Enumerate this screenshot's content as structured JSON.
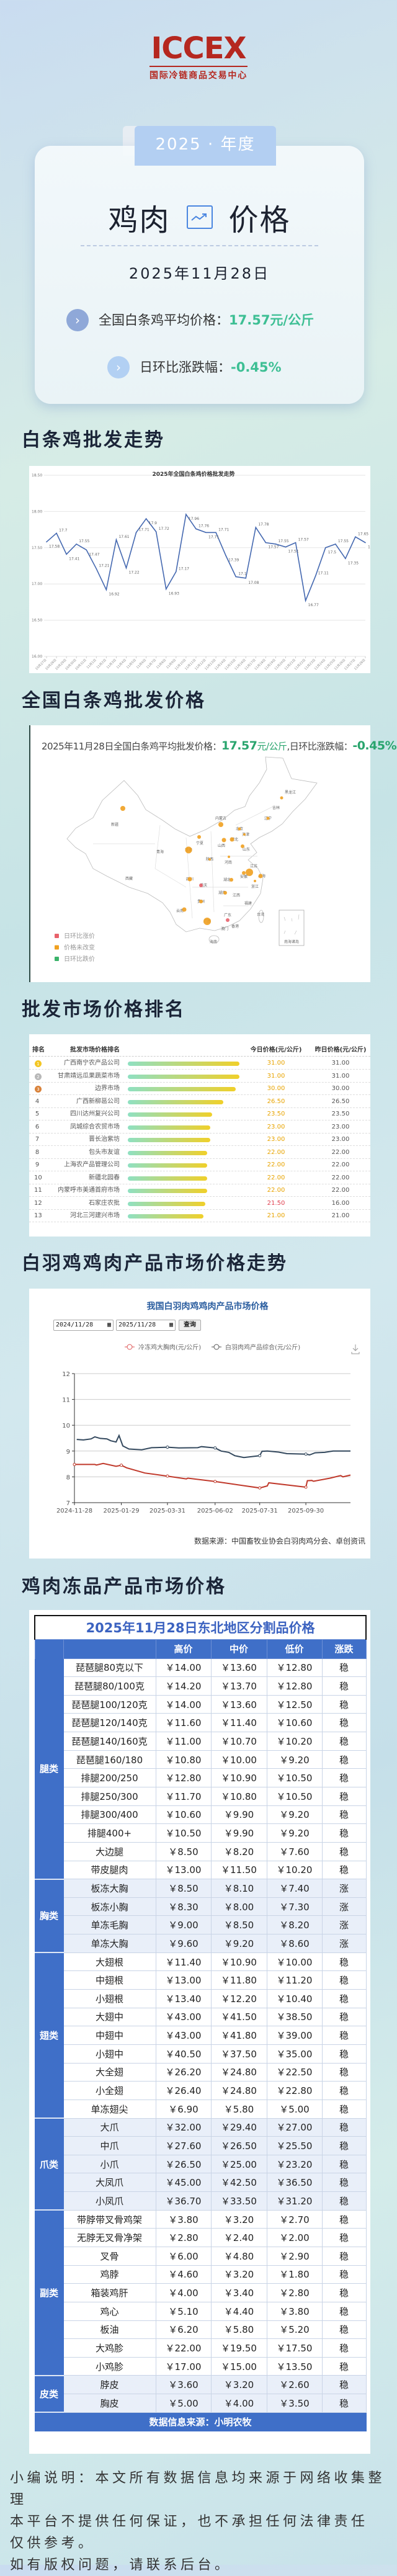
{
  "logo": {
    "brand": "ICCEX",
    "subtitle": "国际冷链商品交易中心"
  },
  "header": {
    "year_tab": "2025 · 年度",
    "title_left": "鸡肉",
    "title_right": "价格",
    "title_icon": "trend-chart-icon",
    "date": "2025年11月28日",
    "stats": [
      {
        "label": "全国白条鸡平均价格：",
        "value": "17.57元/公斤"
      },
      {
        "label": "日环比涨跌幅：",
        "value": "-0.45%"
      }
    ]
  },
  "colors": {
    "accent_green": "#3dbf94",
    "line_blue": "#4468b0",
    "table_blue": "#3f6fc8",
    "brand_red": "#b5271f",
    "rise_red": "#e8626b",
    "flat_orange": "#f0a020",
    "fall_green": "#3bb36a"
  },
  "sections": {
    "trend": "白条鸡批发走势",
    "national": "全国白条鸡批发价格",
    "ranking": "批发市场价格排名",
    "broiler": "白羽鸡鸡肉产品市场价格走势",
    "frozen": "鸡肉冻品产品市场价格"
  },
  "chart_data": [
    {
      "type": "line",
      "title": "2025年全国白条鸡价格批发走势",
      "ylim": [
        16.0,
        18.5
      ],
      "yticks": [
        "16.00",
        "16.50",
        "17.00",
        "17.50",
        "18.00",
        "18.50"
      ],
      "grid": true,
      "categories": [
        "10月27日",
        "10月28日",
        "10月29日",
        "10月30日",
        "10月31日",
        "11月1日",
        "11月2日",
        "11月3日",
        "11月4日",
        "11月5日",
        "11月6日",
        "11月7日",
        "11月8日",
        "11月9日",
        "11月10日",
        "11月11日",
        "11月12日",
        "11月13日",
        "11月14日",
        "11月15日",
        "11月16日",
        "11月17日",
        "11月18日",
        "11月19日",
        "11月20日",
        "11月21日",
        "11月22日",
        "11月23日",
        "11月24日",
        "11月25日",
        "11月26日",
        "11月27日",
        "11月28日"
      ],
      "values": [
        17.58,
        17.7,
        17.41,
        17.55,
        17.47,
        17.21,
        16.92,
        17.61,
        17.22,
        17.71,
        17.9,
        17.72,
        16.93,
        17.17,
        17.96,
        17.76,
        17.71,
        17.71,
        17.39,
        17.1,
        17.08,
        17.78,
        17.57,
        17.55,
        17.51,
        17.57,
        16.77,
        17.11,
        17.5,
        17.55,
        17.35,
        17.65,
        17.57
      ]
    },
    {
      "type": "line",
      "title": "我国白羽肉鸡鸡肉产品市场价格",
      "ylim": [
        7,
        12
      ],
      "yticks": [
        "7",
        "8",
        "9",
        "10",
        "11",
        "12"
      ],
      "grid": true,
      "xlim": [
        "2024-11-28",
        "2025-11-28"
      ],
      "xticks": [
        "2024-11-28",
        "2025-01-29",
        "2025-03-31",
        "2025-06-02",
        "2025-07-31",
        "2025-09-30"
      ],
      "legend": "top",
      "series": [
        {
          "name": "冷冻鸡大胸肉(元/公斤)",
          "color": "#c0392b",
          "points": [
            [
              "2024-11-28",
              8.48
            ],
            [
              "2024-12-25",
              8.48
            ],
            [
              "2024-12-27",
              8.46
            ],
            [
              "2025-01-05",
              8.52
            ],
            [
              "2025-01-22",
              8.41
            ],
            [
              "2025-01-29",
              8.45
            ],
            [
              "2025-02-05",
              8.35
            ],
            [
              "2025-03-01",
              8.15
            ],
            [
              "2025-03-31",
              8.03
            ],
            [
              "2025-04-25",
              7.92
            ],
            [
              "2025-04-27",
              7.95
            ],
            [
              "2025-06-02",
              7.82
            ],
            [
              "2025-07-31",
              7.57
            ],
            [
              "2025-08-10",
              7.65
            ],
            [
              "2025-08-12",
              7.77
            ],
            [
              "2025-09-30",
              7.6
            ],
            [
              "2025-10-02",
              7.85
            ],
            [
              "2025-10-08",
              7.86
            ],
            [
              "2025-10-10",
              7.83
            ],
            [
              "2025-11-01",
              7.95
            ],
            [
              "2025-11-15",
              8.05
            ],
            [
              "2025-11-18",
              8.0
            ],
            [
              "2025-11-28",
              8.07
            ]
          ]
        },
        {
          "name": "白羽肉鸡产品综合(元/公斤)",
          "color": "#34495e",
          "points": [
            [
              "2024-12-01",
              9.45
            ],
            [
              "2024-12-10",
              9.43
            ],
            [
              "2024-12-20",
              9.47
            ],
            [
              "2024-12-25",
              9.55
            ],
            [
              "2025-01-01",
              9.49
            ],
            [
              "2025-01-10",
              9.47
            ],
            [
              "2025-01-15",
              9.4
            ],
            [
              "2025-01-22",
              9.35
            ],
            [
              "2025-01-26",
              9.6
            ],
            [
              "2025-01-31",
              9.2
            ],
            [
              "2025-02-08",
              9.08
            ],
            [
              "2025-02-25",
              9.05
            ],
            [
              "2025-03-10",
              9.13
            ],
            [
              "2025-03-31",
              9.15
            ],
            [
              "2025-04-15",
              9.12
            ],
            [
              "2025-05-10",
              9.13
            ],
            [
              "2025-05-15",
              9.17
            ],
            [
              "2025-06-02",
              9.12
            ],
            [
              "2025-06-10",
              9.0
            ],
            [
              "2025-06-20",
              8.95
            ],
            [
              "2025-06-28",
              8.82
            ],
            [
              "2025-07-10",
              8.75
            ],
            [
              "2025-07-25",
              8.8
            ],
            [
              "2025-07-31",
              8.82
            ],
            [
              "2025-08-03",
              8.99
            ],
            [
              "2025-08-10",
              9.0
            ],
            [
              "2025-08-25",
              8.96
            ],
            [
              "2025-09-05",
              8.9
            ],
            [
              "2025-09-30",
              8.88
            ],
            [
              "2025-10-05",
              8.85
            ],
            [
              "2025-10-12",
              8.93
            ],
            [
              "2025-10-25",
              8.95
            ],
            [
              "2025-11-05",
              9.0
            ],
            [
              "2025-11-28",
              9.0
            ]
          ]
        }
      ]
    }
  ],
  "national": {
    "headline_prefix": "2025年11月28日全国白条鸡平均批发价格：",
    "price": "17.57",
    "unit": "元/公斤",
    "change_label": ",日环比涨跌幅：",
    "change": "-0.45%",
    "legend": [
      {
        "label": "日环比涨价",
        "status": "up"
      },
      {
        "label": "价格未改变",
        "status": "flat"
      },
      {
        "label": "日环比跌价",
        "status": "down"
      }
    ],
    "provinces": [
      {
        "name": "新疆",
        "status": "flat"
      },
      {
        "name": "黑龙江",
        "status": "flat"
      },
      {
        "name": "吉林",
        "status": ""
      },
      {
        "name": "辽宁",
        "status": "flat"
      },
      {
        "name": "内蒙古",
        "status": "flat"
      },
      {
        "name": "北京",
        "status": "flat"
      },
      {
        "name": "天津",
        "status": "flat"
      },
      {
        "name": "河北",
        "status": "flat"
      },
      {
        "name": "山西",
        "status": "flat"
      },
      {
        "name": "宁夏",
        "status": "flat"
      },
      {
        "name": "山东",
        "status": "flat"
      },
      {
        "name": "甘肃",
        "status": "flat"
      },
      {
        "name": "青海",
        "status": ""
      },
      {
        "name": "陕西",
        "status": "flat"
      },
      {
        "name": "河南",
        "status": "flat"
      },
      {
        "name": "江苏",
        "status": "flat"
      },
      {
        "name": "安徽",
        "status": "flat"
      },
      {
        "name": "上海",
        "status": "flat"
      },
      {
        "name": "浙江",
        "status": "flat"
      },
      {
        "name": "湖北",
        "status": "flat"
      },
      {
        "name": "四川",
        "status": "flat"
      },
      {
        "name": "西藏",
        "status": ""
      },
      {
        "name": "重庆",
        "status": "up"
      },
      {
        "name": "湖南",
        "status": "flat"
      },
      {
        "name": "江西",
        "status": ""
      },
      {
        "name": "贵州",
        "status": "flat"
      },
      {
        "name": "福建",
        "status": ""
      },
      {
        "name": "云南",
        "status": "flat"
      },
      {
        "name": "广西",
        "status": "flat"
      },
      {
        "name": "广东",
        "status": "up"
      },
      {
        "name": "台湾",
        "status": ""
      },
      {
        "name": "香港",
        "status": ""
      },
      {
        "name": "澳门",
        "status": ""
      },
      {
        "name": "海南",
        "status": ""
      }
    ],
    "south_sea": "南海诸岛"
  },
  "ranking": {
    "headers": [
      "排名",
      "批发市场价格排名",
      "今日价格(元/公斤)",
      "昨日价格(元/公斤)"
    ],
    "rows": [
      {
        "rank": "1",
        "name": "广西南宁农产品公司",
        "today": "31.00",
        "yesterday": "31.00",
        "value": 31
      },
      {
        "rank": "2",
        "name": "甘肃靖远瓜果蔬菜市场",
        "today": "31.00",
        "yesterday": "31.00",
        "value": 31
      },
      {
        "rank": "3",
        "name": "边界市场",
        "today": "30.00",
        "yesterday": "30.00",
        "value": 30
      },
      {
        "rank": "4",
        "name": "广西新柳邕公司",
        "today": "26.50",
        "yesterday": "26.50",
        "value": 26.5
      },
      {
        "rank": "5",
        "name": "四川达州复兴公司",
        "today": "23.50",
        "yesterday": "23.50",
        "value": 23.5
      },
      {
        "rank": "6",
        "name": "凤城综合农贸市场",
        "today": "23.00",
        "yesterday": "23.00",
        "value": 23
      },
      {
        "rank": "7",
        "name": "晋长治紫坊",
        "today": "23.00",
        "yesterday": "23.00",
        "value": 23
      },
      {
        "rank": "8",
        "name": "包头市友谊",
        "today": "22.00",
        "yesterday": "22.00",
        "value": 22
      },
      {
        "rank": "9",
        "name": "上海农产品管理公司",
        "today": "22.00",
        "yesterday": "22.00",
        "value": 22
      },
      {
        "rank": "10",
        "name": "新疆北园春",
        "today": "22.00",
        "yesterday": "22.00",
        "value": 22
      },
      {
        "rank": "11",
        "name": "内蒙呼市美通首府市场",
        "today": "22.00",
        "yesterday": "22.00",
        "value": 22
      },
      {
        "rank": "12",
        "name": "石家庄农批",
        "today": "21.50",
        "yesterday": "16.00",
        "value": 21.5,
        "rise": true
      },
      {
        "rank": "13",
        "name": "河北三河建兴市场",
        "today": "21.00",
        "yesterday": "21.00",
        "value": 21
      }
    ]
  },
  "broiler": {
    "date_from": "2024/11/28",
    "date_to": "2025/11/28",
    "query_label": "查询",
    "download_icon": "download-icon",
    "source": "数据来源：中国畜牧业协会白羽肉鸡分会、卓创资讯"
  },
  "frozen": {
    "title": "2025年11月28日东北地区分割品价格",
    "headers": [
      "",
      "高价",
      "中价",
      "低价",
      "涨跌"
    ],
    "source": "数据信息来源：小明农牧",
    "groups": [
      {
        "category": "腿类",
        "rows": [
          [
            "琵琶腿80克以下",
            "￥14.00",
            "￥13.60",
            "￥12.80",
            "稳"
          ],
          [
            "琵琶腿80/100克",
            "￥14.20",
            "￥13.70",
            "￥12.80",
            "稳"
          ],
          [
            "琵琶腿100/120克",
            "￥14.00",
            "￥13.60",
            "￥12.50",
            "稳"
          ],
          [
            "琵琶腿120/140克",
            "￥11.60",
            "￥11.40",
            "￥10.60",
            "稳"
          ],
          [
            "琵琶腿140/160克",
            "￥11.00",
            "￥10.70",
            "￥10.20",
            "稳"
          ],
          [
            "琵琶腿160/180",
            "￥10.80",
            "￥10.00",
            "￥9.20",
            "稳"
          ],
          [
            "排腿200/250",
            "￥12.80",
            "￥10.90",
            "￥10.50",
            "稳"
          ],
          [
            "排腿250/300",
            "￥11.70",
            "￥10.80",
            "￥10.50",
            "稳"
          ],
          [
            "排腿300/400",
            "￥10.60",
            "￥9.90",
            "￥9.20",
            "稳"
          ],
          [
            "排腿400+",
            "￥10.50",
            "￥9.90",
            "￥9.20",
            "稳"
          ],
          [
            "大边腿",
            "￥8.50",
            "￥8.20",
            "￥7.60",
            "稳"
          ],
          [
            "带皮腿肉",
            "￥13.00",
            "￥11.50",
            "￥10.20",
            "稳"
          ]
        ]
      },
      {
        "category": "胸类",
        "rows": [
          [
            "板冻大胸",
            "￥8.50",
            "￥8.10",
            "￥7.40",
            "涨"
          ],
          [
            "板冻小胸",
            "￥8.30",
            "￥8.00",
            "￥7.30",
            "涨"
          ],
          [
            "单冻毛胸",
            "￥9.00",
            "￥8.50",
            "￥8.20",
            "涨"
          ],
          [
            "单冻大胸",
            "￥9.60",
            "￥9.20",
            "￥8.60",
            "涨"
          ]
        ]
      },
      {
        "category": "翅类",
        "rows": [
          [
            "大翅根",
            "￥11.40",
            "￥10.90",
            "￥10.00",
            "稳"
          ],
          [
            "中翅根",
            "￥13.00",
            "￥11.80",
            "￥11.20",
            "稳"
          ],
          [
            "小翅根",
            "￥13.40",
            "￥12.20",
            "￥10.40",
            "稳"
          ],
          [
            "大翅中",
            "￥43.00",
            "￥41.50",
            "￥38.50",
            "稳"
          ],
          [
            "中翅中",
            "￥43.00",
            "￥41.80",
            "￥39.00",
            "稳"
          ],
          [
            "小翅中",
            "￥40.50",
            "￥37.50",
            "￥35.00",
            "稳"
          ],
          [
            "大全翅",
            "￥26.20",
            "￥24.80",
            "￥22.50",
            "稳"
          ],
          [
            "小全翅",
            "￥26.40",
            "￥24.80",
            "￥22.80",
            "稳"
          ],
          [
            "单冻翅尖",
            "￥6.90",
            "￥5.80",
            "￥5.00",
            "稳"
          ]
        ]
      },
      {
        "category": "爪类",
        "rows": [
          [
            "大爪",
            "￥32.00",
            "￥29.40",
            "￥27.00",
            "稳"
          ],
          [
            "中爪",
            "￥27.60",
            "￥26.50",
            "￥25.50",
            "稳"
          ],
          [
            "小爪",
            "￥26.50",
            "￥25.00",
            "￥23.20",
            "稳"
          ],
          [
            "大凤爪",
            "￥45.00",
            "￥42.50",
            "￥36.50",
            "稳"
          ],
          [
            "小凤爪",
            "￥36.70",
            "￥33.50",
            "￥31.20",
            "稳"
          ]
        ]
      },
      {
        "category": "副类",
        "rows": [
          [
            "带脖带叉骨鸡架",
            "￥3.80",
            "￥3.20",
            "￥2.70",
            "稳"
          ],
          [
            "无脖无叉骨净架",
            "￥2.80",
            "￥2.40",
            "￥2.00",
            "稳"
          ],
          [
            "叉骨",
            "￥6.00",
            "￥4.80",
            "￥2.90",
            "稳"
          ],
          [
            "鸡脖",
            "￥4.60",
            "￥3.20",
            "￥1.80",
            "稳"
          ],
          [
            "箱装鸡肝",
            "￥4.00",
            "￥3.40",
            "￥2.80",
            "稳"
          ],
          [
            "鸡心",
            "￥5.10",
            "￥4.40",
            "￥3.80",
            "稳"
          ],
          [
            "板油",
            "￥6.20",
            "￥5.80",
            "￥5.20",
            "稳"
          ],
          [
            "大鸡胗",
            "￥22.00",
            "￥19.50",
            "￥17.50",
            "稳"
          ],
          [
            "小鸡胗",
            "￥17.00",
            "￥15.00",
            "￥13.50",
            "稳"
          ]
        ]
      },
      {
        "category": "皮类",
        "rows": [
          [
            "脖皮",
            "￥3.60",
            "￥3.20",
            "￥2.60",
            "稳"
          ],
          [
            "胸皮",
            "￥5.00",
            "￥4.00",
            "￥3.50",
            "稳"
          ]
        ]
      }
    ]
  },
  "footer": {
    "lines": [
      "小编说明：本文所有数据信息均来源于网络收集整理",
      "本平台不提供任何保证，也不承担任何法律责任",
      "仅供参考。",
      "如有版权问题，请联系后台。"
    ]
  }
}
